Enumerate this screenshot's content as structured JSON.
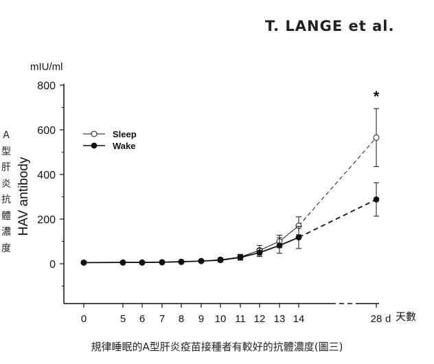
{
  "header": {
    "author": "T.  LANGE  et  al."
  },
  "caption": "規律睡眠的A型肝炎疫苗接種者有較好的抗體濃度(圖三)",
  "side_label": "A型肝炎抗體濃度",
  "chart_data": {
    "type": "line",
    "title": "",
    "ylabel": "HAV antibody",
    "yunit": "mIU/ml",
    "xlabel_suffix": "d",
    "xlabel_cjk": "天數",
    "ylim": [
      -180,
      800
    ],
    "yticks": [
      0,
      200,
      400,
      600,
      800
    ],
    "x": [
      0,
      5,
      6,
      7,
      8,
      9,
      10,
      11,
      12,
      13,
      14,
      28
    ],
    "x_tick_labels": [
      "0",
      "5",
      "6",
      "7",
      "8",
      "9",
      "10",
      "11",
      "12",
      "13",
      "14",
      "28"
    ],
    "axis_break": "between 14 and 28",
    "legend_position": "top-left",
    "grid": false,
    "series": [
      {
        "name": "Sleep",
        "marker": "open-circle",
        "values": [
          5,
          5,
          5,
          6,
          8,
          12,
          18,
          30,
          60,
          100,
          170,
          565
        ],
        "errors": [
          4,
          4,
          4,
          4,
          5,
          6,
          8,
          12,
          22,
          28,
          40,
          130
        ]
      },
      {
        "name": "Wake",
        "marker": "filled-circle",
        "values": [
          5,
          6,
          6,
          7,
          9,
          12,
          16,
          28,
          50,
          82,
          118,
          288
        ],
        "errors": [
          4,
          4,
          4,
          4,
          5,
          6,
          8,
          12,
          18,
          35,
          50,
          75
        ]
      }
    ],
    "annotations": [
      {
        "x": 28,
        "text": "*"
      }
    ]
  }
}
